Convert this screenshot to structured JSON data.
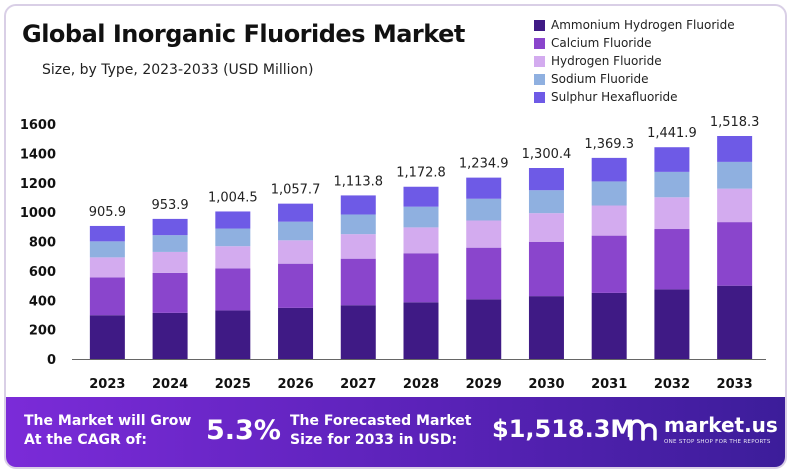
{
  "chart_data": {
    "type": "stacked-bar",
    "title": "Global Inorganic Fluorides Market",
    "subtitle": "Size, by Type, 2023-2033 (USD Million)",
    "categories": [
      "2023",
      "2024",
      "2025",
      "2026",
      "2027",
      "2028",
      "2029",
      "2030",
      "2031",
      "2032",
      "2033"
    ],
    "totals": [
      905.9,
      953.9,
      1004.5,
      1057.7,
      1113.8,
      1172.8,
      1234.9,
      1300.4,
      1369.3,
      1441.9,
      1518.3
    ],
    "total_labels": [
      "905.9",
      "953.9",
      "1,004.5",
      "1,057.7",
      "1,113.8",
      "1,172.8",
      "1,234.9",
      "1,300.4",
      "1,369.3",
      "1,441.9",
      "1,518.3"
    ],
    "series": [
      {
        "name": "Ammonium Hydrogen Fluoride",
        "color": "#3f1a85",
        "values": [
          298,
          314,
          331,
          348,
          366,
          386,
          406,
          428,
          450,
          474,
          499
        ]
      },
      {
        "name": "Calcium Fluoride",
        "color": "#8a45cc",
        "values": [
          258,
          272,
          286,
          301,
          317,
          334,
          352,
          370,
          390,
          411,
          433
        ]
      },
      {
        "name": "Hydrogen Fluoride",
        "color": "#d3abef",
        "values": [
          136,
          143,
          151,
          159,
          167,
          176,
          185,
          195,
          205,
          216,
          228
        ]
      },
      {
        "name": "Sodium Fluoride",
        "color": "#8fb0e0",
        "values": [
          109,
          114,
          120,
          127,
          134,
          141,
          148,
          156,
          164,
          173,
          182
        ]
      },
      {
        "name": "Sulphur Hexafluoride",
        "color": "#6e5ae6",
        "values": [
          104.9,
          110.9,
          116.5,
          122.7,
          129.8,
          135.8,
          143.9,
          151.4,
          160.3,
          167.9,
          176.3
        ]
      }
    ],
    "y_ticks": [
      0,
      200,
      400,
      600,
      800,
      1000,
      1200,
      1400,
      1600
    ],
    "ylim": [
      0,
      1600
    ],
    "grid": false,
    "legend_position": "top-right",
    "xlabel": "",
    "ylabel": ""
  },
  "footer": {
    "cagr_label_line1": "The Market will Grow",
    "cagr_label_line2": "At the CAGR of:",
    "cagr_value": "5.3%",
    "forecast_label_line1": "The Forecasted Market",
    "forecast_label_line2": "Size for 2033 in USD:",
    "forecast_value": "$1,518.3M",
    "brand": "market.us",
    "brand_tagline": "ONE STOP SHOP FOR THE REPORTS"
  }
}
